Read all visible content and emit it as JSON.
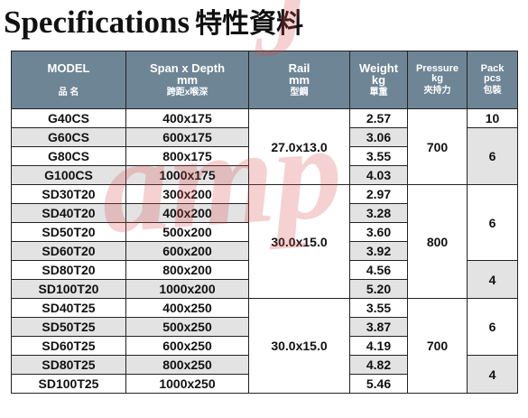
{
  "title": {
    "en": "Specifications",
    "cn": "特性資料"
  },
  "watermark": "Jamp",
  "headers": {
    "model": {
      "en": "MODEL",
      "cn": "品 名"
    },
    "span": {
      "en": "Span x Depth",
      "unit": "mm",
      "cn": "跨距x喉深"
    },
    "rail": {
      "en": "Rail",
      "unit": "mm",
      "cn": "型鋼"
    },
    "weight": {
      "en": "Weight",
      "unit": "kg",
      "cn": "單重"
    },
    "pressure": {
      "en": "Pressure",
      "unit": "kg",
      "cn": "夾持力"
    },
    "pack": {
      "en": "Pack",
      "unit": "pcs",
      "cn": "包裝"
    }
  },
  "rows": [
    {
      "model": "G40CS",
      "span": "400x175",
      "weight": "2.57"
    },
    {
      "model": "G60CS",
      "span": "600x175",
      "weight": "3.06"
    },
    {
      "model": "G80CS",
      "span": "800x175",
      "weight": "3.55"
    },
    {
      "model": "G100CS",
      "span": "1000x175",
      "weight": "4.03"
    },
    {
      "model": "SD30T20",
      "span": "300x200",
      "weight": "2.97"
    },
    {
      "model": "SD40T20",
      "span": "400x200",
      "weight": "3.28"
    },
    {
      "model": "SD50T20",
      "span": "500x200",
      "weight": "3.60"
    },
    {
      "model": "SD60T20",
      "span": "600x200",
      "weight": "3.92"
    },
    {
      "model": "SD80T20",
      "span": "800x200",
      "weight": "4.56"
    },
    {
      "model": "SD100T20",
      "span": "1000x200",
      "weight": "5.20"
    },
    {
      "model": "SD40T25",
      "span": "400x250",
      "weight": "3.55"
    },
    {
      "model": "SD50T25",
      "span": "500x250",
      "weight": "3.87"
    },
    {
      "model": "SD60T25",
      "span": "600x250",
      "weight": "4.19"
    },
    {
      "model": "SD80T25",
      "span": "800x250",
      "weight": "4.82"
    },
    {
      "model": "SD100T25",
      "span": "1000x250",
      "weight": "5.46"
    }
  ],
  "rail_groups": [
    "27.0x13.0",
    "30.0x15.0",
    "30.0x15.0"
  ],
  "pressure_groups": [
    "700",
    "800",
    "700"
  ],
  "pack_groups": [
    "10",
    "6",
    "6",
    "4",
    "6",
    "4"
  ],
  "colors": {
    "header_bg": "#6e8595",
    "stripe": "#e3e3e3",
    "watermark": "#d74848"
  }
}
